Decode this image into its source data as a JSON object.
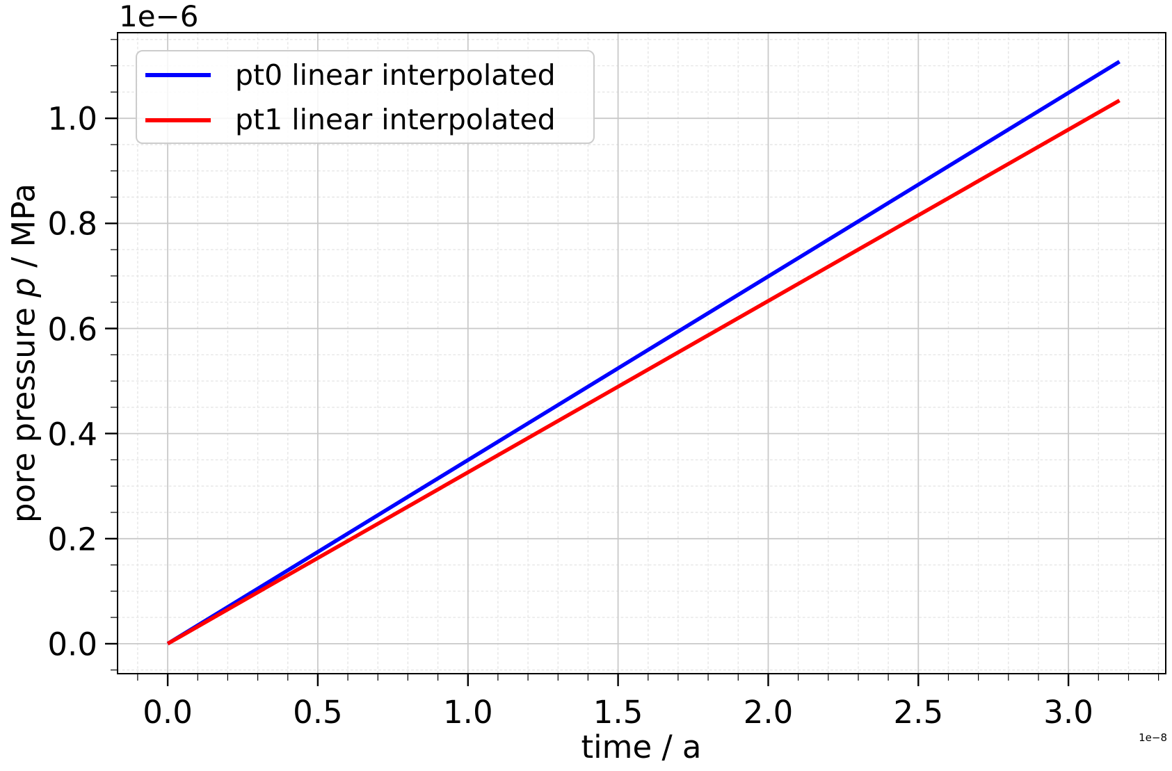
{
  "chart_data": {
    "type": "line",
    "title": "",
    "xlabel": "time / a",
    "ylabel": "pore pressure p / MPa",
    "ylabel_parts": [
      "pore pressure ",
      "p",
      " / MPa"
    ],
    "y_offset_text": "1e−6",
    "x_offset_text": "1e−8",
    "x_scale_factor": 1e-08,
    "y_scale_factor": 1e-06,
    "xlim": [
      -0.167,
      3.324
    ],
    "ylim": [
      -0.057,
      1.163
    ],
    "x_major_ticks": [
      0.0,
      0.5,
      1.0,
      1.5,
      2.0,
      2.5,
      3.0
    ],
    "x_major_tick_labels": [
      "0.0",
      "0.5",
      "1.0",
      "1.5",
      "2.0",
      "2.5",
      "3.0"
    ],
    "x_minor_tick_step": 0.1,
    "y_major_ticks": [
      0.0,
      0.2,
      0.4,
      0.6,
      0.8,
      1.0
    ],
    "y_major_tick_labels": [
      "0.0",
      "0.2",
      "0.4",
      "0.6",
      "0.8",
      "1.0"
    ],
    "y_minor_tick_step": 0.05,
    "grid": {
      "major": true,
      "minor": true,
      "major_color": "#c9c9c9",
      "minor_color": "#e6e6e6",
      "minor_style": "dashed"
    },
    "legend": {
      "position": "upper left",
      "border_color": "#cccccc"
    },
    "series": [
      {
        "name": "pt0 linear interpolated",
        "color": "#0000ff",
        "x": [
          0.0,
          3.17e-08
        ],
        "y": [
          0.0,
          1.108e-06
        ]
      },
      {
        "name": "pt1 linear interpolated",
        "color": "#ff0000",
        "x": [
          0.0,
          3.17e-08
        ],
        "y": [
          0.0,
          1.034e-06
        ]
      }
    ],
    "axis_color": "#000000"
  }
}
